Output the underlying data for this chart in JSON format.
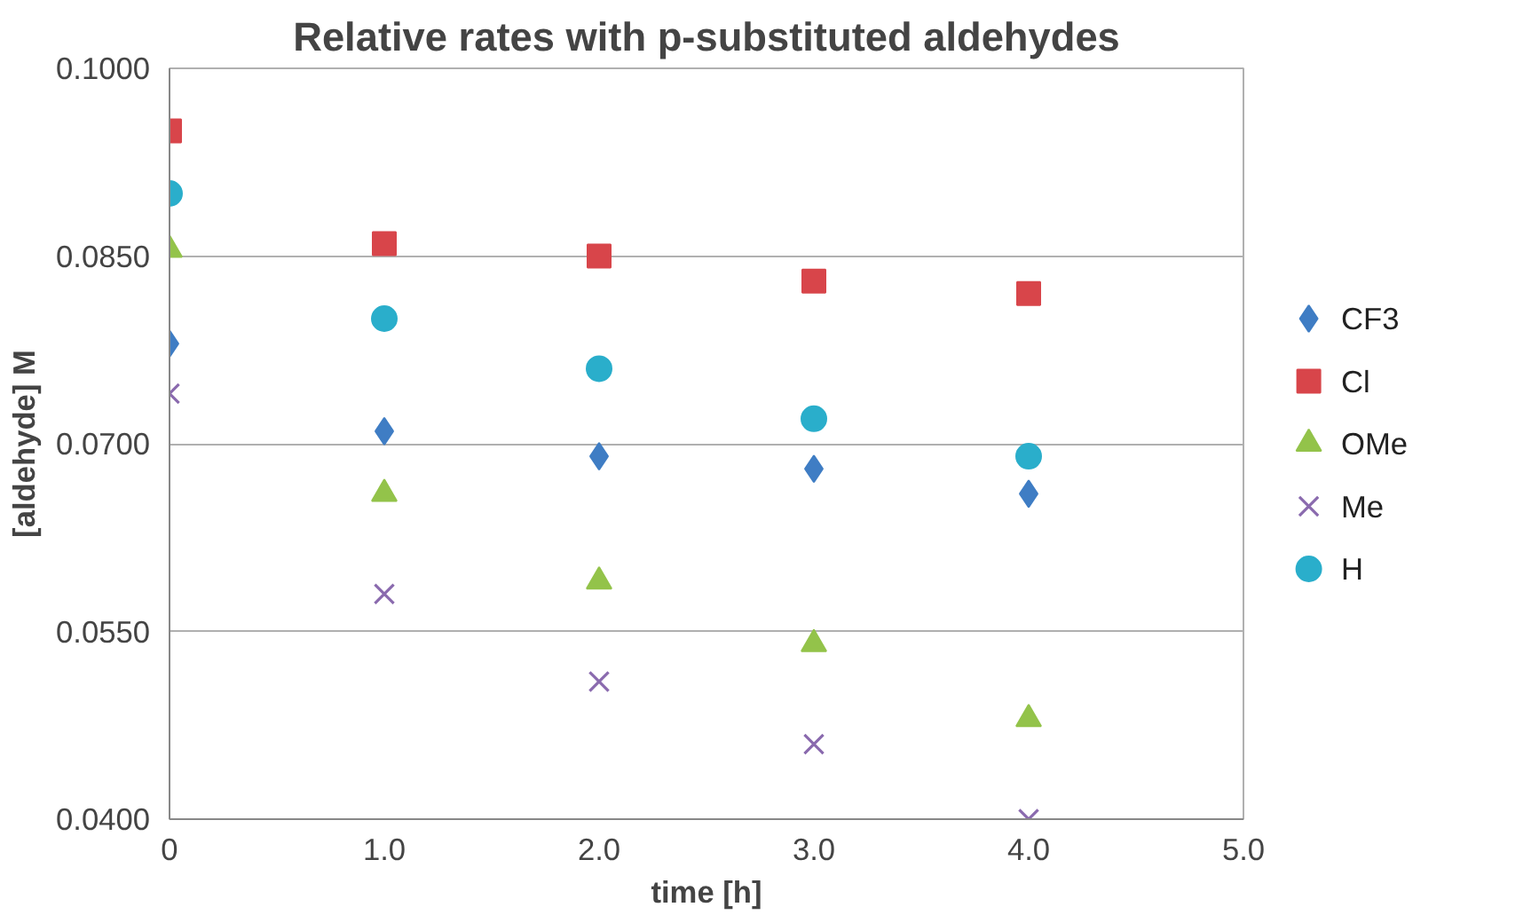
{
  "chart_data": {
    "type": "scatter",
    "title": "Relative rates with p-substituted aldehydes",
    "xlabel": "time [h]",
    "ylabel": "[aldehyde] M",
    "x": [
      0,
      1,
      2,
      3,
      4
    ],
    "series": [
      {
        "name": "CF3",
        "color": "#3f7dc4",
        "marker": "diamond",
        "values": [
          0.078,
          0.071,
          0.069,
          0.068,
          0.066
        ]
      },
      {
        "name": "Cl",
        "color": "#d8454a",
        "marker": "square",
        "values": [
          0.095,
          0.086,
          0.085,
          0.083,
          0.082
        ]
      },
      {
        "name": "OMe",
        "color": "#93c34a",
        "marker": "triangle",
        "values": [
          0.0855,
          0.066,
          0.059,
          0.054,
          0.048
        ]
      },
      {
        "name": "Me",
        "color": "#8a6aae",
        "marker": "cross",
        "values": [
          0.074,
          0.058,
          0.051,
          0.046,
          0.04
        ]
      },
      {
        "name": "H",
        "color": "#2aaecb",
        "marker": "circle",
        "values": [
          0.09,
          0.08,
          0.076,
          0.072,
          0.069
        ]
      }
    ],
    "xlim": [
      0,
      5
    ],
    "xticks": [
      0,
      {
        "value": 1,
        "label": "1.0"
      },
      {
        "value": 2,
        "label": "2.0"
      },
      {
        "value": 3,
        "label": "3.0"
      },
      {
        "value": 4,
        "label": "4.0"
      },
      {
        "value": 5,
        "label": "5.0"
      }
    ],
    "ylim": [
      0.04,
      0.1
    ],
    "yticks": [
      {
        "value": 0.04,
        "label": "0.0400"
      },
      {
        "value": 0.055,
        "label": "0.0550"
      },
      {
        "value": 0.07,
        "label": "0.0700"
      },
      {
        "value": 0.085,
        "label": "0.0850"
      },
      {
        "value": 0.1,
        "label": "0.1000"
      }
    ],
    "grid": "y",
    "legend": "right"
  }
}
